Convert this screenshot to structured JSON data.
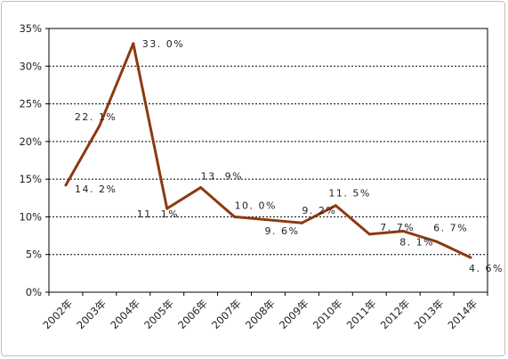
{
  "chart_data": {
    "type": "line",
    "categories": [
      "2002年",
      "2003年",
      "2004年",
      "2005年",
      "2006年",
      "2007年",
      "2008年",
      "2009年",
      "2010年",
      "2011年",
      "2012年",
      "2013年",
      "2014年"
    ],
    "series": [
      {
        "values": [
          14.2,
          22.1,
          33.0,
          11.1,
          13.9,
          10.0,
          9.6,
          9.2,
          11.5,
          7.7,
          8.1,
          6.7,
          4.6
        ],
        "labels": [
          "14. 2%",
          "22. 1%",
          "33. 0%",
          "11. 1%",
          "13. 9%",
          "10. 0%",
          "9. 6%",
          "9. 2%",
          "11. 5%",
          "7. 7%",
          "8. 1%",
          "6. 7%",
          "4. 6%"
        ],
        "color": "#8b3a10"
      }
    ],
    "yticks": [
      "0%",
      "5%",
      "10%",
      "15%",
      "20%",
      "25%",
      "30%",
      "35%"
    ],
    "ylim": [
      0,
      35
    ],
    "grid": "horizontal-dashed",
    "legend": "none"
  }
}
